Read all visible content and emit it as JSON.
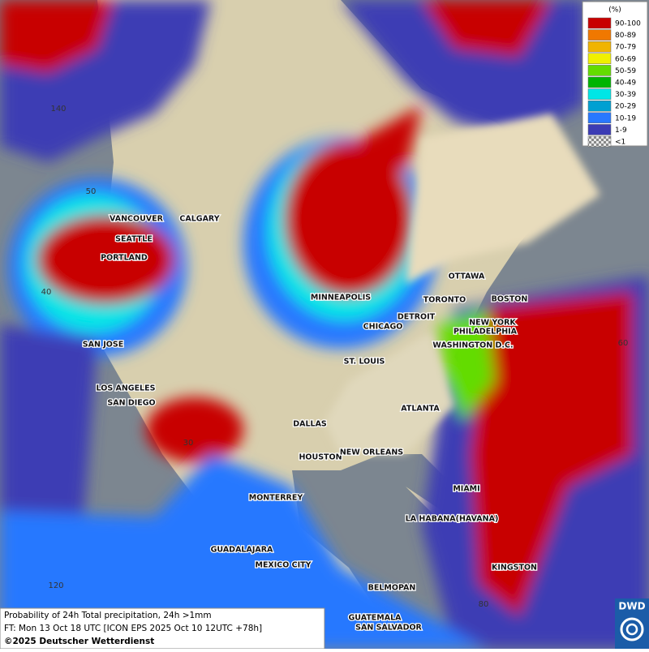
{
  "legend": {
    "unit": "(%)",
    "entries": [
      {
        "label": "90-100",
        "color": "#c80000"
      },
      {
        "label": "80-89",
        "color": "#f07800"
      },
      {
        "label": "70-79",
        "color": "#f0b400"
      },
      {
        "label": "60-69",
        "color": "#f0f000"
      },
      {
        "label": "50-59",
        "color": "#64dc00"
      },
      {
        "label": "40-49",
        "color": "#00b400"
      },
      {
        "label": "30-39",
        "color": "#00e6e6"
      },
      {
        "label": "20-29",
        "color": "#00a0d2"
      },
      {
        "label": "10-19",
        "color": "#2878ff"
      },
      {
        "label": "1-9",
        "color": "#3c3cb4"
      },
      {
        "label": "<1",
        "color": "#c8c8c8"
      }
    ]
  },
  "cities": [
    "VANCOUVER",
    "CALGARY",
    "SEATTLE",
    "PORTLAND",
    "MINNEAPOLIS",
    "OTTAWA",
    "TORONTO",
    "BOSTON",
    "DETROIT",
    "NEW YORK",
    "CHICAGO",
    "PHILADELPHIA",
    "WASHINGTON D.C.",
    "SAN JOSE",
    "ST. LOUIS",
    "LOS ANGELES",
    "SAN DIEGO",
    "ATLANTA",
    "DALLAS",
    "HOUSTON",
    "NEW ORLEANS",
    "MIAMI",
    "MONTERREY",
    "LA HABANA(HAVANA)",
    "GUADALAJARA",
    "MEXICO CITY",
    "KINGSTON",
    "BELMOPAN",
    "GUATEMALA",
    "SAN SALVADOR"
  ],
  "grid_labels": [
    "140",
    "50",
    "40",
    "60",
    "30",
    "80",
    "120"
  ],
  "footer": {
    "line1": "Probability of 24h Total precipitation, 24h >1mm",
    "line2": "FT: Mon 13 Oct 18 UTC [ICON EPS 2025 Oct 10 12UTC +78h]",
    "line3": "©2025 Deutscher Wetterdienst"
  },
  "logo": "DWD"
}
